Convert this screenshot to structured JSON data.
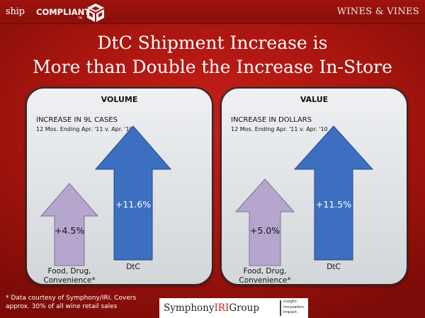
{
  "header": {
    "logo_ship": "ship",
    "logo_compliant": "COMPLIANT",
    "logo_tm": "TM",
    "brand_right": "WINES & VINES"
  },
  "title": {
    "line1": "DtC Shipment Increase is",
    "line2": "More than Double the Increase In-Store"
  },
  "panels": [
    {
      "heading": "VOLUME",
      "subtitle": "INCREASE IN 9L CASES",
      "period": "12 Mos. Ending Apr. '11 v. Apr. '10",
      "arrows": [
        {
          "value_label": "+4.5%",
          "value": 4.5,
          "label_lines": [
            "Food, Drug,",
            "Convenience*"
          ],
          "color": "#b4a6cc"
        },
        {
          "value_label": "+11.6%",
          "value": 11.6,
          "label_lines": [
            "DtC"
          ],
          "color": "#3d6fc0"
        }
      ]
    },
    {
      "heading": "VALUE",
      "subtitle": "INCREASE IN DOLLARS",
      "period": "12 Mos. Ending Apr. '11 v. Apr. '10",
      "arrows": [
        {
          "value_label": "+5.0%",
          "value": 5.0,
          "label_lines": [
            "Food, Drug,",
            "Convenience*"
          ],
          "color": "#b4a6cc"
        },
        {
          "value_label": "+11.5%",
          "value": 11.5,
          "label_lines": [
            "DtC"
          ],
          "color": "#3d6fc0"
        }
      ]
    }
  ],
  "footer": {
    "note_line1": "* Data courtesy of Symphony/IRI. Covers",
    "note_line2": "approx. 30% of all wine retail sales",
    "iri_name_part1": "Symphony",
    "iri_name_part2": "IRI",
    "iri_name_part3": "Group",
    "iri_tag1": "Insight.",
    "iri_tag2": "Innovation.",
    "iri_tag3": "Impact."
  }
}
